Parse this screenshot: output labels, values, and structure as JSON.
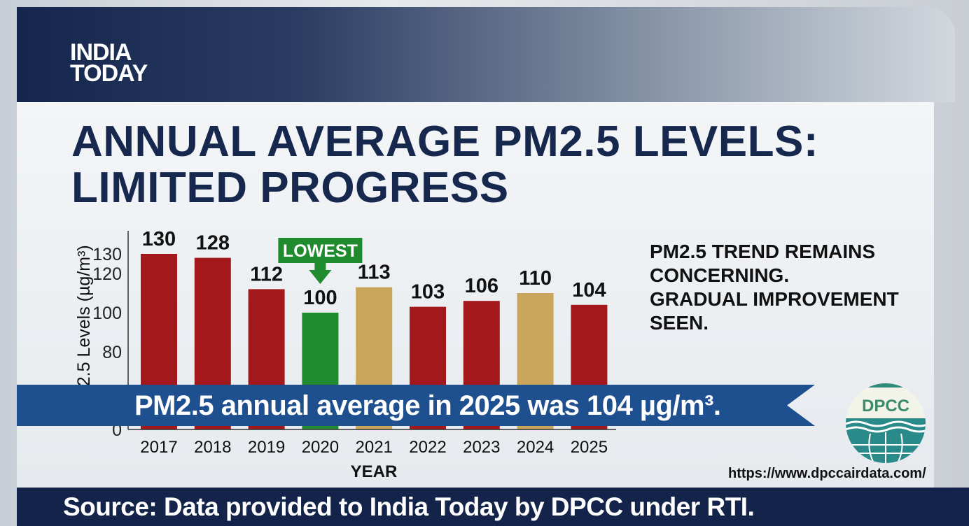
{
  "brand": {
    "logo_line1": "INDIA",
    "logo_line2": "TODAY"
  },
  "headline": {
    "line1": "ANNUAL AVERAGE PM2.5 LEVELS:",
    "line2": "LIMITED PROGRESS"
  },
  "note": {
    "line1": "PM2.5 TREND REMAINS",
    "line2": "CONCERNING.",
    "line3": "GRADUAL IMPROVEMENT",
    "line4": "SEEN."
  },
  "banner": {
    "text": "PM2.5 annual average in 2025 was 104 µg/m³."
  },
  "footer": {
    "source": "Source: Data provided to India Today by DPCC under RTI."
  },
  "dpcc": {
    "logo_text": "DPCC",
    "url": "https://www.dpccairdata.com/"
  },
  "colors": {
    "high": "#a3181b",
    "lowest": "#208a2e",
    "moderate": "#c9a65b",
    "banner": "#1e4f8e",
    "navy": "#13234a"
  },
  "chart_data": {
    "type": "bar",
    "categories": [
      "2017",
      "2018",
      "2019",
      "2020",
      "2021",
      "2022",
      "2023",
      "2024",
      "2025"
    ],
    "values": [
      130,
      128,
      112,
      100,
      113,
      103,
      106,
      110,
      104
    ],
    "bar_colors": [
      "high",
      "high",
      "high",
      "lowest",
      "moderate",
      "high",
      "high",
      "moderate",
      "high"
    ],
    "xlabel": "YEAR",
    "ylabel": "PM2.5 Levels (µg/m³)",
    "yticks": [
      0,
      80,
      100,
      120,
      130
    ],
    "annotation": {
      "label": "LOWEST",
      "category": "2020"
    },
    "grid": false,
    "legend": "none"
  }
}
